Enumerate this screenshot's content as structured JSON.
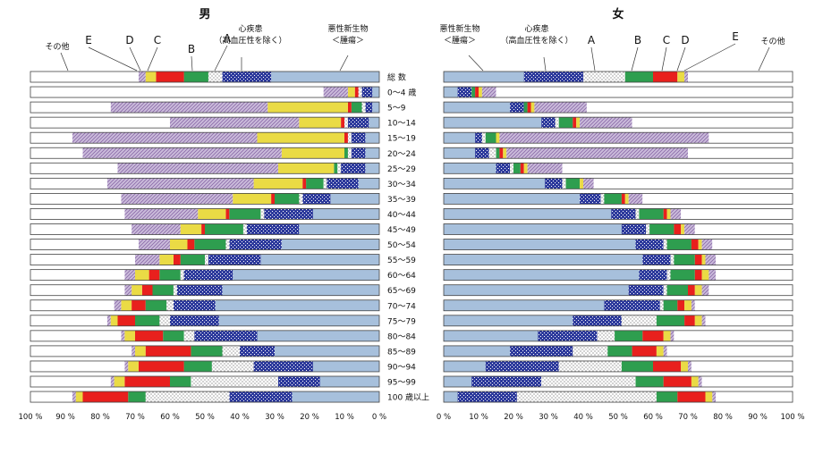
{
  "chart_data": {
    "type": "bar",
    "stacked": true,
    "orientation": "horizontal",
    "panels": [
      {
        "title": "男",
        "direction": "right-to-left"
      },
      {
        "title": "女",
        "direction": "left-to-right"
      }
    ],
    "x_ticks": [
      "0 %",
      "10 %",
      "20 %",
      "30 %",
      "40 %",
      "50 %",
      "60 %",
      "70 %",
      "80 %",
      "90 %",
      "100 %"
    ],
    "xlim": [
      0,
      100
    ],
    "categories": [
      "総 数",
      "0〜4 歳",
      "5〜9",
      "10〜14",
      "15〜19",
      "20〜24",
      "25〜29",
      "30〜34",
      "35〜39",
      "40〜44",
      "45〜49",
      "50〜54",
      "55〜59",
      "60〜64",
      "65〜69",
      "70〜74",
      "75〜79",
      "80〜84",
      "85〜89",
      "90〜94",
      "95〜99",
      "100 歳以上"
    ],
    "series_names": [
      "悪性新生物＜腫瘍＞",
      "心疾患（高血圧性を除く）",
      "A",
      "B",
      "C",
      "D",
      "E",
      "その他"
    ],
    "series_colors": [
      "#a7c0dc",
      "#2d3a9c",
      "#ffffff",
      "#2e9e4f",
      "#e8201d",
      "#eadb45",
      "#c9b8d8",
      "#ffffff"
    ],
    "legend_labels": {
      "male": [
        {
          "text": "その他"
        },
        {
          "text": "E"
        },
        {
          "text": "D"
        },
        {
          "text": "C"
        },
        {
          "text": "B"
        },
        {
          "text": "A"
        },
        {
          "lines": [
            "心疾患",
            "（高血圧性を除く）"
          ]
        },
        {
          "lines": [
            "悪性新生物",
            "＜腫瘍＞"
          ]
        }
      ],
      "female": [
        {
          "lines": [
            "悪性新生物",
            "＜腫瘍＞"
          ]
        },
        {
          "lines": [
            "心疾患",
            "（高血圧性を除く）"
          ]
        },
        {
          "text": "A"
        },
        {
          "text": "B"
        },
        {
          "text": "C"
        },
        {
          "text": "D"
        },
        {
          "text": "E"
        },
        {
          "text": "その他"
        }
      ]
    },
    "male": [
      [
        31,
        14,
        4,
        7,
        8,
        3,
        2,
        31
      ],
      [
        2,
        3,
        1,
        0,
        1,
        2,
        7,
        84
      ],
      [
        2,
        2,
        1,
        3,
        1,
        23,
        45,
        23
      ],
      [
        3,
        6,
        1,
        0,
        1,
        12,
        37,
        40
      ],
      [
        4,
        4,
        1,
        0,
        1,
        25,
        53,
        12
      ],
      [
        4,
        4,
        1,
        1,
        0,
        18,
        57,
        15
      ],
      [
        4,
        7,
        1,
        1,
        0,
        16,
        46,
        25
      ],
      [
        6,
        9,
        1,
        5,
        1,
        14,
        42,
        22
      ],
      [
        14,
        8,
        1,
        7,
        1,
        11,
        32,
        26
      ],
      [
        19,
        14,
        1,
        9,
        1,
        8,
        21,
        27
      ],
      [
        23,
        15,
        1,
        11,
        1,
        6,
        14,
        29
      ],
      [
        28,
        15,
        1,
        9,
        2,
        5,
        9,
        31
      ],
      [
        34,
        15,
        1,
        7,
        2,
        4,
        7,
        30
      ],
      [
        42,
        14,
        1,
        6,
        3,
        4,
        3,
        27
      ],
      [
        45,
        13,
        1,
        6,
        3,
        3,
        2,
        27
      ],
      [
        47,
        12,
        2,
        6,
        4,
        3,
        2,
        24
      ],
      [
        46,
        14,
        3,
        7,
        5,
        2,
        1,
        22
      ],
      [
        35,
        18,
        3,
        6,
        8,
        3,
        1,
        26
      ],
      [
        30,
        10,
        5,
        9,
        13,
        3,
        1,
        29
      ],
      [
        19,
        17,
        12,
        8,
        13,
        3,
        1,
        27
      ],
      [
        17,
        12,
        25,
        6,
        13,
        3,
        1,
        23
      ],
      [
        25,
        18,
        24,
        5,
        13,
        2,
        1,
        12
      ]
    ],
    "female": [
      [
        23,
        17,
        12,
        8,
        7,
        2,
        1,
        30
      ],
      [
        4,
        4,
        0,
        1,
        1,
        1,
        4,
        85
      ],
      [
        19,
        4,
        0,
        1,
        1,
        1,
        15,
        59
      ],
      [
        28,
        4,
        1,
        4,
        1,
        1,
        15,
        46
      ],
      [
        9,
        2,
        1,
        3,
        0,
        1,
        60,
        24
      ],
      [
        9,
        4,
        2,
        1,
        1,
        1,
        52,
        30
      ],
      [
        15,
        4,
        1,
        2,
        1,
        1,
        10,
        66
      ],
      [
        29,
        5,
        1,
        4,
        0,
        1,
        3,
        57
      ],
      [
        39,
        6,
        1,
        5,
        1,
        1,
        4,
        43
      ],
      [
        48,
        7,
        1,
        7,
        1,
        1,
        3,
        32
      ],
      [
        51,
        7,
        1,
        7,
        2,
        1,
        3,
        28
      ],
      [
        55,
        8,
        1,
        7,
        2,
        1,
        3,
        23
      ],
      [
        57,
        8,
        1,
        6,
        2,
        1,
        3,
        22
      ],
      [
        56,
        8,
        1,
        7,
        2,
        2,
        2,
        22
      ],
      [
        53,
        10,
        1,
        6,
        2,
        2,
        2,
        24
      ],
      [
        46,
        16,
        1,
        4,
        2,
        2,
        1,
        28
      ],
      [
        37,
        14,
        10,
        8,
        3,
        2,
        1,
        25
      ],
      [
        27,
        17,
        5,
        8,
        6,
        2,
        1,
        34
      ],
      [
        19,
        18,
        10,
        7,
        7,
        2,
        1,
        36
      ],
      [
        12,
        21,
        18,
        9,
        8,
        2,
        1,
        29
      ],
      [
        8,
        20,
        27,
        8,
        8,
        2,
        1,
        26
      ],
      [
        4,
        17,
        40,
        6,
        8,
        2,
        1,
        22
      ]
    ]
  }
}
